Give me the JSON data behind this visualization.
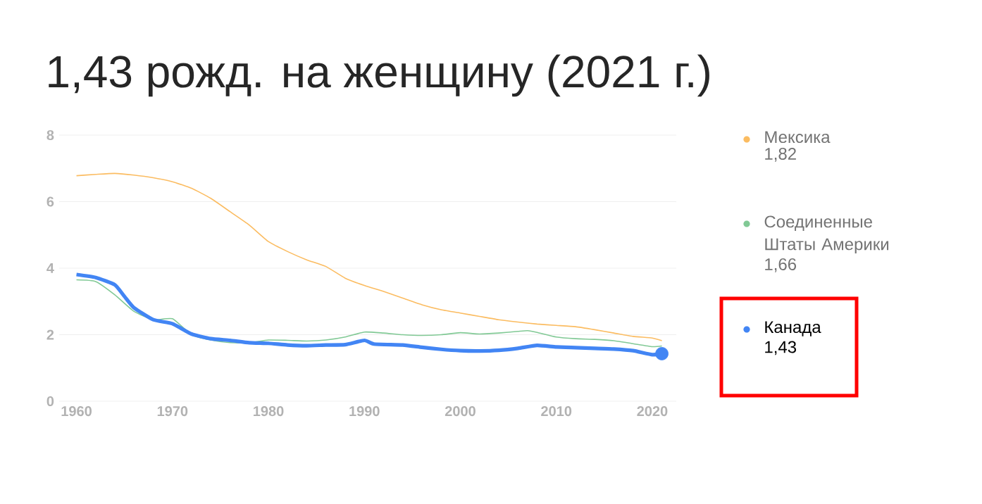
{
  "chart_data": {
    "type": "line",
    "title": "1,43 рожд. на женщину (2021 г.)",
    "xlim": [
      1958.2,
      2022.5
    ],
    "ylim": [
      0,
      8
    ],
    "xticks": [
      1960,
      1970,
      1980,
      1990,
      2000,
      2010,
      2020
    ],
    "yticks": [
      0,
      2,
      4,
      6,
      8
    ],
    "grid": "y",
    "legend": "right",
    "marker": "none",
    "line_style": "solid",
    "series": [
      {
        "name": "Мексика",
        "color": "#fbbc61",
        "x": [
          1960,
          1962,
          1964,
          1966,
          1968,
          1970,
          1972,
          1974,
          1976,
          1978,
          1980,
          1982,
          1984,
          1986,
          1988,
          1990,
          1992,
          1994,
          1996,
          1998,
          2000,
          2002,
          2004,
          2006,
          2008,
          2010,
          2012,
          2014,
          2016,
          2018,
          2020,
          2021
        ],
        "values": [
          6.78,
          6.82,
          6.85,
          6.8,
          6.72,
          6.6,
          6.4,
          6.1,
          5.7,
          5.3,
          4.8,
          4.5,
          4.25,
          4.05,
          3.7,
          3.48,
          3.3,
          3.1,
          2.9,
          2.75,
          2.65,
          2.55,
          2.45,
          2.38,
          2.32,
          2.28,
          2.24,
          2.15,
          2.05,
          1.95,
          1.9,
          1.82
        ]
      },
      {
        "name": "Соединенные Штаты Америки",
        "color": "#81c995",
        "x": [
          1960,
          1962,
          1964,
          1966,
          1968,
          1970,
          1972,
          1974,
          1976,
          1978,
          1980,
          1982,
          1984,
          1986,
          1988,
          1990,
          1992,
          1994,
          1996,
          1998,
          2000,
          2002,
          2004,
          2006,
          2007,
          2008,
          2010,
          2012,
          2014,
          2016,
          2018,
          2020,
          2021
        ],
        "values": [
          3.65,
          3.6,
          3.2,
          2.7,
          2.45,
          2.48,
          2.0,
          1.84,
          1.76,
          1.76,
          1.84,
          1.83,
          1.81,
          1.84,
          1.93,
          2.08,
          2.05,
          2.0,
          1.98,
          2.0,
          2.06,
          2.02,
          2.05,
          2.1,
          2.12,
          2.07,
          1.93,
          1.88,
          1.86,
          1.82,
          1.73,
          1.64,
          1.66
        ]
      },
      {
        "name": "Канада",
        "color": "#4285f4",
        "x": [
          1960,
          1962,
          1964,
          1965,
          1966,
          1968,
          1970,
          1972,
          1974,
          1976,
          1978,
          1980,
          1982,
          1984,
          1986,
          1988,
          1990,
          1991,
          1994,
          1996,
          1998,
          2000,
          2002,
          2004,
          2006,
          2008,
          2010,
          2012,
          2014,
          2016,
          2018,
          2020,
          2021
        ],
        "values": [
          3.81,
          3.72,
          3.5,
          3.15,
          2.81,
          2.45,
          2.33,
          2.02,
          1.88,
          1.83,
          1.76,
          1.74,
          1.69,
          1.67,
          1.69,
          1.7,
          1.83,
          1.72,
          1.69,
          1.62,
          1.56,
          1.52,
          1.51,
          1.53,
          1.59,
          1.68,
          1.63,
          1.61,
          1.59,
          1.57,
          1.52,
          1.4,
          1.43
        ]
      },
      {
        "type": "scatter",
        "marker": "circle",
        "color": "#4285f4",
        "x": [
          2021
        ],
        "values": [
          1.43
        ]
      }
    ],
    "annotations": [
      "1,82",
      "1,66",
      "1,43"
    ]
  }
}
